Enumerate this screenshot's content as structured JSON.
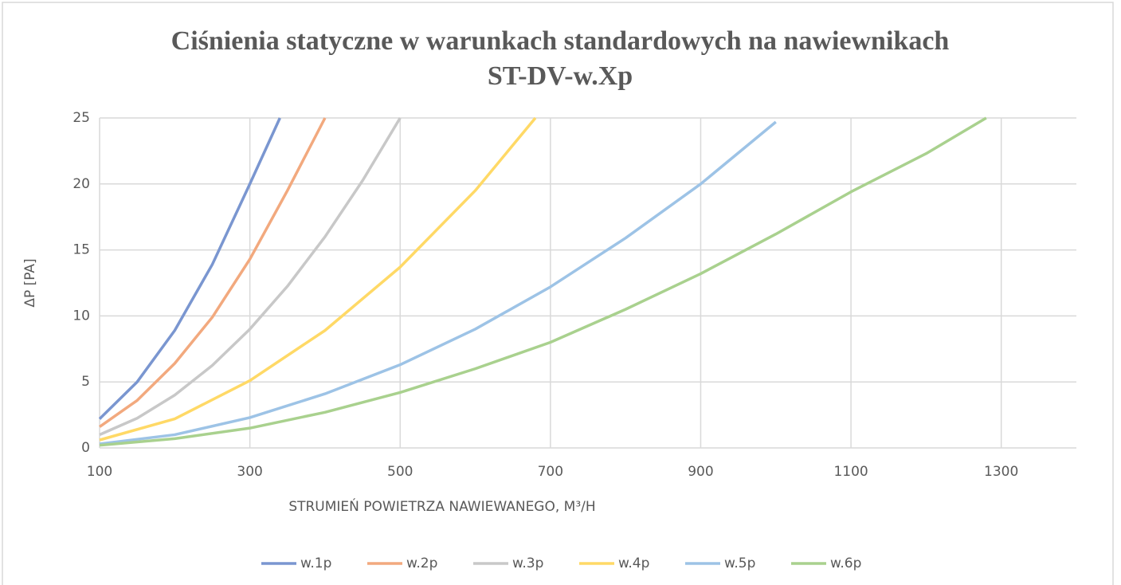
{
  "chart_data": {
    "type": "line",
    "title": "Ciśnienia statyczne w warunkach standardowych na nawiewnikach",
    "subtitle": "ST-DV-w.Xp",
    "x_label": "STRUMIEŃ POWIETRZA NAWIEWANEGO, M³/H",
    "y_label": "ΔP [PA]",
    "xlim": [
      100,
      1400
    ],
    "xticks": [
      100,
      300,
      500,
      700,
      900,
      1100,
      1300
    ],
    "ylim": [
      0,
      25
    ],
    "yticks": [
      0,
      5,
      10,
      15,
      20,
      25
    ],
    "grid": true,
    "legend": "bottom",
    "series": [
      {
        "name": "w.1p",
        "color": "#7a96d0",
        "x": [
          100,
          150,
          200,
          250,
          300,
          340
        ],
        "values": [
          2.2,
          5,
          8.9,
          13.9,
          20,
          25
        ]
      },
      {
        "name": "w.2p",
        "color": "#f2a97e",
        "x": [
          100,
          150,
          200,
          250,
          300,
          350,
          400
        ],
        "values": [
          1.6,
          3.6,
          6.4,
          9.9,
          14.3,
          19.5,
          25
        ]
      },
      {
        "name": "w.3p",
        "color": "#c8c8c8",
        "x": [
          100,
          150,
          200,
          250,
          300,
          350,
          400,
          450,
          500
        ],
        "values": [
          1,
          2.25,
          4,
          6.25,
          9,
          12.25,
          16,
          20.25,
          25
        ]
      },
      {
        "name": "w.4p",
        "color": "#ffd966",
        "x": [
          100,
          200,
          300,
          400,
          500,
          600,
          680
        ],
        "values": [
          0.6,
          2.2,
          5.1,
          8.9,
          13.7,
          19.5,
          25
        ]
      },
      {
        "name": "w.5p",
        "color": "#9dc3e6",
        "x": [
          100,
          200,
          300,
          400,
          500,
          600,
          700,
          800,
          900,
          1000
        ],
        "values": [
          0.3,
          1.0,
          2.3,
          4.1,
          6.3,
          9,
          12.2,
          15.9,
          20,
          24.7
        ]
      },
      {
        "name": "w.6p",
        "color": "#a9d18e",
        "x": [
          100,
          200,
          300,
          400,
          500,
          600,
          700,
          800,
          900,
          1000,
          1100,
          1200,
          1280
        ],
        "values": [
          0.2,
          0.7,
          1.5,
          2.7,
          4.2,
          6,
          8,
          10.5,
          13.2,
          16.2,
          19.4,
          22.3,
          25
        ]
      }
    ]
  }
}
